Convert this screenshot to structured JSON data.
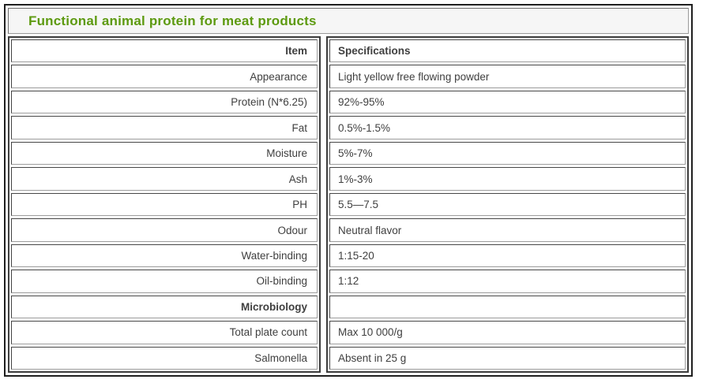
{
  "page": {
    "title": "Functional animal protein for meat products"
  },
  "table": {
    "item_header": "Item",
    "spec_header": "Specifications",
    "rows": [
      {
        "item": "Appearance",
        "spec": "Light yellow free flowing powder"
      },
      {
        "item": "Protein (N*6.25)",
        "spec": "92%-95%"
      },
      {
        "item": "Fat",
        "spec": "0.5%-1.5%"
      },
      {
        "item": "Moisture",
        "spec": "5%-7%"
      },
      {
        "item": "Ash",
        "spec": "1%-3%"
      },
      {
        "item": "PH",
        "spec": "5.5—7.5"
      },
      {
        "item": "Odour",
        "spec": "Neutral flavor"
      },
      {
        "item": "Water-binding",
        "spec": "1:15-20"
      },
      {
        "item": "Oil-binding",
        "spec": "1:12"
      },
      {
        "item": "Microbiology",
        "spec": ""
      },
      {
        "item": "Total plate count",
        "spec": "Max 10 000/g"
      },
      {
        "item": "Salmonella",
        "spec": "Absent in 25 g"
      }
    ]
  },
  "colors": {
    "title_green": "#5D9A10",
    "title_background": "#F6F6F6",
    "cell_text": "#3F3F3F",
    "outer_border": "#1F1F1F",
    "cell_border_dark": "#474747",
    "cell_border_light": "#9D9D9D"
  }
}
